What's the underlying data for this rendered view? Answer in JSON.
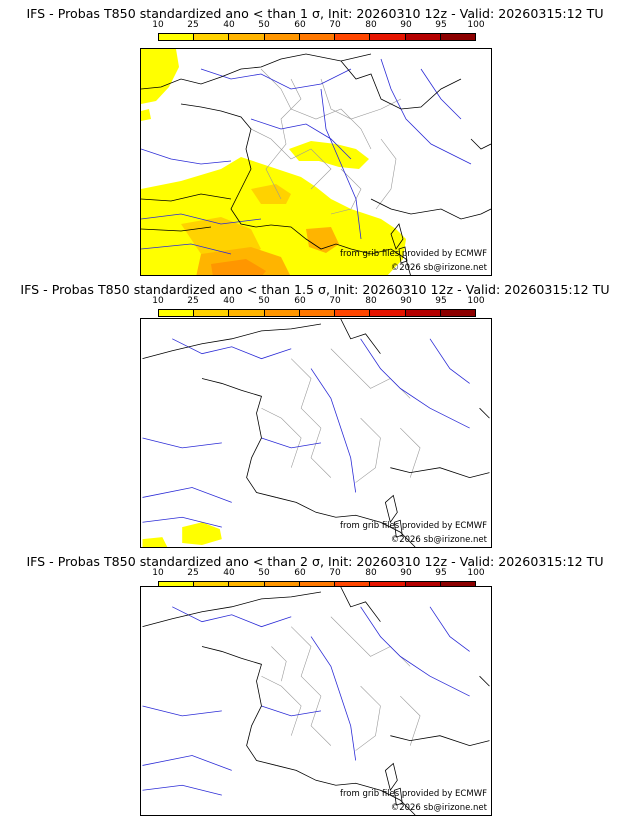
{
  "colorbar": {
    "labels": [
      "10",
      "25",
      "40",
      "50",
      "60",
      "70",
      "80",
      "90",
      "95",
      "100"
    ],
    "colors": [
      "#ffff00",
      "#ffd200",
      "#ffb400",
      "#ff9600",
      "#ff7800",
      "#ff4600",
      "#e61400",
      "#b40000",
      "#8c0000"
    ]
  },
  "panels": [
    {
      "title": "IFS - Probas T850  standardized ano < than 1 σ, Init: 20260310 12z - Valid: 20260315:12 TU",
      "credit_source": "from grib files provided by ECMWF",
      "credit_copyright": "©2026 sb@irizone.net"
    },
    {
      "title": "IFS - Probas T850  standardized ano < than 1.5 σ, Init: 20260310 12z - Valid: 20260315:12 TU",
      "credit_source": "from grib files provided by ECMWF",
      "credit_copyright": "©2026 sb@irizone.net"
    },
    {
      "title": "IFS - Probas T850  standardized ano < than 2 σ, Init: 20260310 12z - Valid: 20260315:12 TU",
      "credit_source": "from grib files provided by ECMWF",
      "credit_copyright": "©2026 sb@irizone.net"
    }
  ],
  "colors": {
    "coast": "#000000",
    "rivers": "#2b2bd6",
    "admin": "#9a9a9a"
  }
}
